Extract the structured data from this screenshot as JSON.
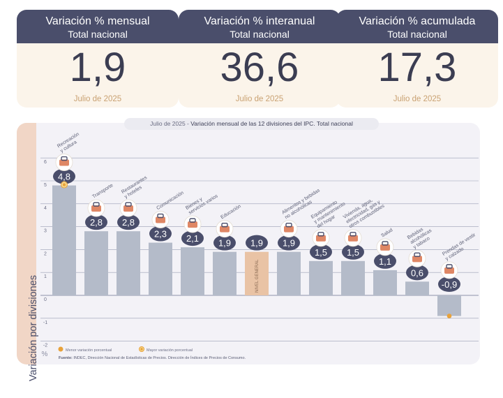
{
  "cards": [
    {
      "title": "Variación % mensual",
      "subtitle": "Total nacional",
      "value": "1,9",
      "date": "Julio de 2025"
    },
    {
      "title": "Variación % interanual",
      "subtitle": "Total nacional",
      "value": "36,6",
      "date": "Julio de 2025"
    },
    {
      "title": "Variación % acumulada",
      "subtitle": "Total nacional",
      "value": "17,3",
      "date": "Julio de 2025"
    }
  ],
  "chart_title": {
    "prefix": "Julio de 2025 - ",
    "main": "Variación mensual de las 12 divisiones del IPC. Total nacional"
  },
  "y_axis_label": "Variación por divisiones",
  "y_unit": "%",
  "legend": [
    {
      "label": "Menor variación porcentual"
    },
    {
      "label": "Mayor variación porcentual"
    }
  ],
  "source": {
    "bold": "Fuente:",
    "text": " INDEC, Dirección Nacional de Estadísticas de Precios. Dirección de Índices de Precios de Consumo."
  },
  "colors": {
    "bar": "#b4bbc9",
    "bar_general": "#e9c3a5",
    "badge": "#4a4e6b",
    "accent": "#e8a23a",
    "icon_orange": "#d9724a"
  },
  "chart_data": {
    "type": "bar",
    "categories": [
      "Recreación y cultura",
      "Transporte",
      "Restaurantes y hoteles",
      "Comunicación",
      "Bienes y servicios varios",
      "Educación",
      "NIVEL GENERAL",
      "Alimentos y bebidas no alcohólicas",
      "Equipamiento y mantenimiento del hogar",
      "Vivienda, agua, electricidad, gas y otros combustibles",
      "Salud",
      "Bebidas alcohólicas y tabaco",
      "Prendas de vestir y calzado"
    ],
    "category_labels": [
      [
        "Recreación",
        "y cultura"
      ],
      [
        "Transporte"
      ],
      [
        "Restaurantes",
        "y hoteles"
      ],
      [
        "Comunicación"
      ],
      [
        "Bienes y",
        "servicios varios"
      ],
      [
        "Educación"
      ],
      [],
      [
        "Alimentos y bebidas",
        "no alcohólicas"
      ],
      [
        "Equipamiento",
        "y mantenimiento",
        "del hogar"
      ],
      [
        "Vivienda, agua,",
        "electricidad, gas y",
        "otros combustibles"
      ],
      [
        "Salud"
      ],
      [
        "Bebidas",
        "alcohólicas",
        "y tabaco"
      ],
      [
        "Prendas de vestir",
        "y calzado"
      ]
    ],
    "values": [
      4.8,
      2.8,
      2.8,
      2.3,
      2.1,
      1.9,
      1.9,
      1.9,
      1.5,
      1.5,
      1.1,
      0.6,
      -0.9
    ],
    "value_labels": [
      "4,8",
      "2,8",
      "2,8",
      "2,3",
      "2,1",
      "1,9",
      "1,9",
      "1,9",
      "1,5",
      "1,5",
      "1,1",
      "0,6",
      "-0,9"
    ],
    "general_label": "NIVEL GENERAL",
    "ylim": [
      -2,
      6
    ],
    "yticks": [
      -2,
      -1,
      0,
      1,
      2,
      3,
      4,
      5,
      6
    ],
    "ytick_labels": [
      "-2",
      "-1",
      "0",
      "1",
      "2",
      "3",
      "4",
      "5",
      "6"
    ],
    "highest_category": "Recreación y cultura",
    "lowest_category": "Prendas de vestir y calzado",
    "grid": true
  }
}
